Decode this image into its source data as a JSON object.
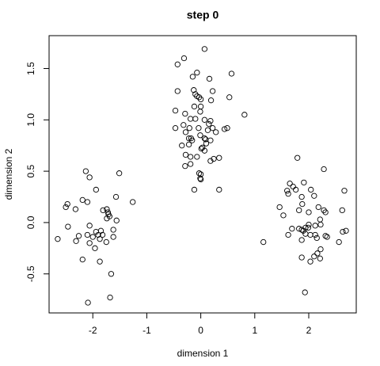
{
  "chart_data": {
    "type": "scatter",
    "title": "step 0",
    "x_label": "dimension 1",
    "y_label": "dimension 2",
    "color": "#000000",
    "xlim": [
      -2.81,
      2.88
    ],
    "ylim": [
      -0.88,
      1.82
    ],
    "xticks": [
      -2,
      -1,
      0,
      1,
      2
    ],
    "yticks": [
      -0.5,
      {
        "value": 0,
        "label": "0.0"
      },
      0.5,
      {
        "value": 1,
        "label": "1.0"
      },
      1.5
    ],
    "x": [
      -2.13,
      -2.06,
      -1.51,
      -2.47,
      -2.5,
      -2.32,
      -2.19,
      -2.1,
      -1.94,
      -1.57,
      -1.26,
      -1.74,
      -1.72,
      -1.71,
      -1.74,
      -1.69,
      -1.56,
      -1.81,
      -2.46,
      -2.65,
      -2.26,
      -2.06,
      -2.1,
      -1.94,
      -1.9,
      -1.85,
      -2.0,
      -1.87,
      -2.06,
      -1.62,
      -1.62,
      -2.31,
      -1.96,
      -1.75,
      -2.19,
      -1.87,
      -1.66,
      -2.09,
      -1.68,
      -1.82,
      0.07,
      -0.31,
      -0.43,
      -0.07,
      0.57,
      -0.15,
      -0.43,
      -0.13,
      -0.1,
      -0.07,
      -0.03,
      0.0,
      0.16,
      0.22,
      0.53,
      0.19,
      -0.12,
      -0.47,
      -0.29,
      0.0,
      -0.01,
      0.81,
      -0.19,
      -0.1,
      0.07,
      0.18,
      0.15,
      -0.32,
      -0.04,
      -0.21,
      0.22,
      0.44,
      0.49,
      -0.47,
      -0.28,
      0.13,
      -0.01,
      0.07,
      0.28,
      -0.18,
      0.18,
      -0.22,
      -0.16,
      0.1,
      0.03,
      0.01,
      0.07,
      -0.35,
      0.09,
      -0.22,
      -0.28,
      -0.07,
      0.34,
      0.24,
      0.18,
      -0.29,
      -0.19,
      -0.03,
      0.0,
      -0.01,
      0.0,
      -0.12,
      0.34,
      -0.19,
      1.79,
      2.28,
      1.65,
      1.91,
      2.04,
      1.71,
      1.76,
      1.6,
      2.66,
      1.46,
      1.62,
      1.87,
      2.1,
      1.88,
      2.18,
      2.28,
      1.82,
      2.0,
      2.31,
      1.53,
      2.62,
      2.21,
      2.12,
      1.87,
      1.94,
      1.94,
      1.99,
      1.9,
      2.03,
      2.22,
      2.31,
      1.82,
      1.87,
      2.12,
      2.63,
      2.56,
      2.69,
      2.15,
      2.34,
      1.16,
      1.62,
      2.22,
      2.16,
      2.21,
      1.87,
      2.03,
      2.1,
      1.93,
      2.0,
      1.69
    ],
    "values": [
      0.5,
      0.44,
      0.48,
      0.18,
      0.15,
      0.13,
      0.22,
      0.2,
      0.32,
      0.25,
      0.2,
      0.13,
      0.1,
      0.08,
      0.04,
      0.06,
      0.02,
      0.12,
      -0.04,
      -0.16,
      -0.13,
      -0.03,
      -0.12,
      -0.09,
      -0.12,
      -0.08,
      -0.14,
      -0.16,
      -0.2,
      -0.07,
      -0.14,
      -0.18,
      -0.25,
      -0.19,
      -0.36,
      -0.38,
      -0.5,
      -0.78,
      -0.73,
      -0.12,
      1.69,
      1.6,
      1.54,
      1.46,
      1.45,
      1.42,
      1.28,
      1.29,
      1.25,
      1.23,
      1.22,
      1.2,
      1.4,
      1.28,
      1.22,
      1.19,
      1.13,
      1.09,
      1.06,
      1.13,
      1.08,
      1.05,
      1.01,
      1.01,
      1.0,
      0.99,
      0.96,
      0.95,
      0.92,
      0.92,
      0.92,
      0.91,
      0.92,
      0.92,
      0.88,
      0.9,
      0.85,
      0.82,
      0.88,
      0.82,
      0.8,
      0.82,
      0.8,
      0.77,
      0.73,
      0.72,
      0.7,
      0.75,
      0.81,
      0.76,
      0.66,
      0.64,
      0.63,
      0.62,
      0.6,
      0.55,
      0.57,
      0.48,
      0.47,
      0.43,
      0.42,
      0.32,
      0.32,
      0.64,
      0.63,
      0.52,
      0.38,
      0.39,
      0.32,
      0.35,
      0.32,
      0.31,
      0.31,
      0.15,
      0.28,
      0.25,
      0.26,
      0.18,
      0.15,
      0.12,
      0.12,
      0.1,
      0.1,
      0.07,
      0.12,
      0.03,
      -0.03,
      -0.07,
      -0.05,
      -0.11,
      -0.05,
      -0.08,
      -0.12,
      -0.02,
      -0.13,
      -0.06,
      -0.17,
      -0.12,
      -0.09,
      -0.19,
      -0.08,
      -0.15,
      -0.14,
      -0.19,
      -0.12,
      -0.26,
      -0.3,
      -0.35,
      -0.34,
      -0.38,
      -0.33,
      -0.68,
      -0.02,
      -0.06
    ]
  }
}
